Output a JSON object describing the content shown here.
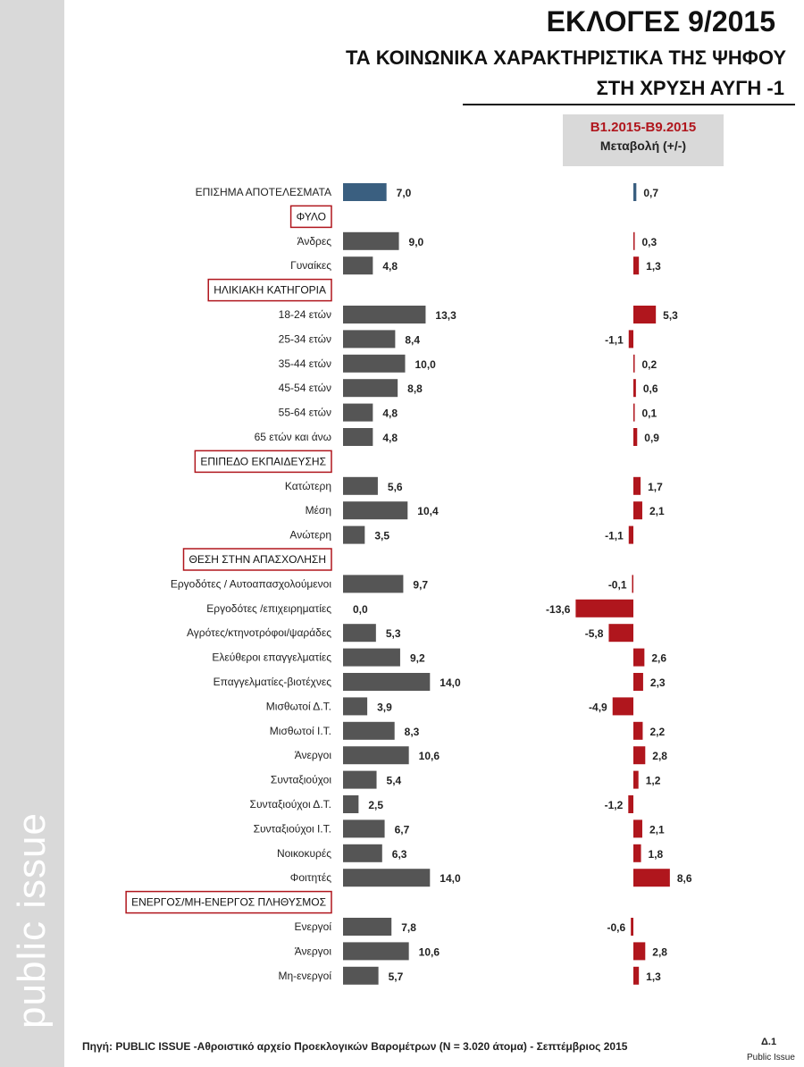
{
  "header": {
    "title": "ΕΚΛΟΓΕΣ 9/2015",
    "subtitle_1": "ΤΑ ΚΟΙΝΩΝΙΚΑ ΧΑΡΑΚΤΗΡΙΣΤΙΚΑ ΤΗΣ ΨΗΦΟΥ",
    "subtitle_2": "ΣΤΗ ΧΡΥΣΗ ΑΥΓΗ -1"
  },
  "change_header": {
    "line1": "Β1.2015-Β9.2015",
    "line2": "Μεταβολή (+/-)"
  },
  "side_logo": "public issue",
  "footer": {
    "source": "Πηγή:  PUBLIC ISSUE -Αθροιστικό αρχείο Προεκλογικών Βαρομέτρων (N = 3.020 άτομα)  - Σεπτέμβριος 2015",
    "page_code": "Δ.1",
    "brand": "Public Issue"
  },
  "colors": {
    "official_bar": "#3a5f80",
    "share_bar": "#555555",
    "change_bar": "#b0161d",
    "section_box": "#b0161d"
  },
  "chart_data": [
    {
      "type": "bar",
      "orientation": "horizontal",
      "name": "vote-share",
      "categories": [
        "ΕΠΙΣΗΜΑ ΑΠΟΤΕΛΕΣΜΑΤΑ",
        "Άνδρες",
        "Γυναίκες",
        "18-24 ετών",
        "25-34 ετών",
        "35-44 ετών",
        "45-54 ετών",
        "55-64 ετών",
        "65 ετών και άνω",
        "Κατώτερη",
        "Μέση",
        "Ανώτερη",
        "Εργοδότες / Αυτοαπασχολούμενοι",
        "Εργοδότες /επιχειρηματίες",
        "Αγρότες/κτηνοτρόφοι/ψαράδες",
        "Ελεύθεροι επαγγελματίες",
        "Επαγγελματίες-βιοτέχνες",
        "Μισθωτοί Δ.Τ.",
        "Μισθωτοί Ι.Τ.",
        "Άνεργοι",
        "Συνταξιούχοι",
        "Συνταξιούχοι Δ.Τ.",
        "Συνταξιούχοι Ι.Τ.",
        "Νοικοκυρές",
        "Φοιτητές",
        "Ενεργοί",
        "Άνεργοι",
        "Μη-ενεργοί"
      ],
      "values": [
        7.0,
        9.0,
        4.8,
        13.3,
        8.4,
        10.0,
        8.8,
        4.8,
        4.8,
        5.6,
        10.4,
        3.5,
        9.7,
        0.0,
        5.3,
        9.2,
        14.0,
        3.9,
        8.3,
        10.6,
        5.4,
        2.5,
        6.7,
        6.3,
        14.0,
        7.8,
        10.6,
        5.7
      ],
      "value_labels": [
        "7,0",
        "9,0",
        "4,8",
        "13,3",
        "8,4",
        "10,0",
        "8,8",
        "4,8",
        "4,8",
        "5,6",
        "10,4",
        "3,5",
        "9,7",
        "0,0",
        "5,3",
        "9,2",
        "14,0",
        "3,9",
        "8,3",
        "10,6",
        "5,4",
        "2,5",
        "6,7",
        "6,3",
        "14,0",
        "7,8",
        "10,6",
        "5,7"
      ]
    },
    {
      "type": "bar",
      "orientation": "horizontal",
      "name": "change",
      "categories": [
        "ΕΠΙΣΗΜΑ ΑΠΟΤΕΛΕΣΜΑΤΑ",
        "Άνδρες",
        "Γυναίκες",
        "18-24 ετών",
        "25-34 ετών",
        "35-44 ετών",
        "45-54 ετών",
        "55-64 ετών",
        "65 ετών και άνω",
        "Κατώτερη",
        "Μέση",
        "Ανώτερη",
        "Εργοδότες / Αυτοαπασχολούμενοι",
        "Εργοδότες /επιχειρηματίες",
        "Αγρότες/κτηνοτρόφοι/ψαράδες",
        "Ελεύθεροι επαγγελματίες",
        "Επαγγελματίες-βιοτέχνες",
        "Μισθωτοί Δ.Τ.",
        "Μισθωτοί Ι.Τ.",
        "Άνεργοι",
        "Συνταξιούχοι",
        "Συνταξιούχοι Δ.Τ.",
        "Συνταξιούχοι Ι.Τ.",
        "Νοικοκυρές",
        "Φοιτητές",
        "Ενεργοί",
        "Άνεργοι",
        "Μη-ενεργοί"
      ],
      "values": [
        0.7,
        0.3,
        1.3,
        5.3,
        -1.1,
        0.2,
        0.6,
        0.1,
        0.9,
        1.7,
        2.1,
        -1.1,
        -0.1,
        -13.6,
        -5.8,
        2.6,
        2.3,
        -4.9,
        2.2,
        2.8,
        1.2,
        -1.2,
        2.1,
        1.8,
        8.6,
        -0.6,
        2.8,
        1.3
      ],
      "value_labels": [
        "0,7",
        "0,3",
        "1,3",
        "5,3",
        "-1,1",
        "0,2",
        "0,6",
        "0,1",
        "0,9",
        "1,7",
        "2,1",
        "-1,1",
        "-0,1",
        "-13,6",
        "-5,8",
        "2,6",
        "2,3",
        "-4,9",
        "2,2",
        "2,8",
        "1,2",
        "-1,2",
        "2,1",
        "1,8",
        "8,6",
        "-0,6",
        "2,8",
        "1,3"
      ]
    }
  ],
  "sections": [
    {
      "label": "ΦΥΛΟ",
      "before_index": 1
    },
    {
      "label": "ΗΛΙΚΙΑΚΗ ΚΑΤΗΓΟΡΙΑ",
      "before_index": 3
    },
    {
      "label": "ΕΠΙΠΕΔΟ ΕΚΠΑΙΔΕΥΣΗΣ",
      "before_index": 9
    },
    {
      "label": "ΘΕΣΗ ΣΤΗΝ ΑΠΑΣΧΟΛΗΣΗ",
      "before_index": 12
    },
    {
      "label": "ΕΝΕΡΓΟΣ/ΜΗ-ΕΝΕΡΓΟΣ ΠΛΗΘΥΣΜΟΣ",
      "before_index": 25
    }
  ]
}
